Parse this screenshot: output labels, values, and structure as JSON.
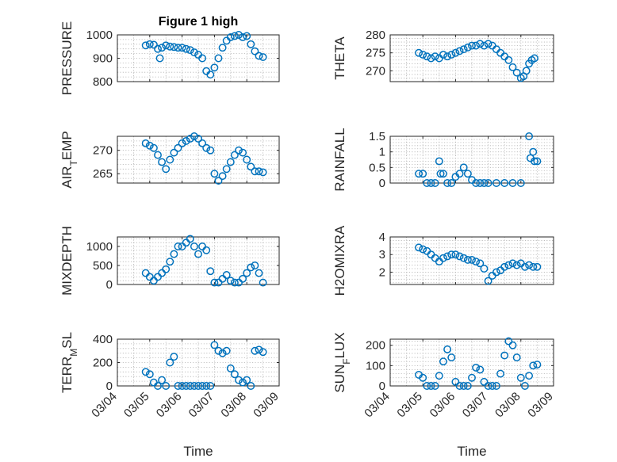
{
  "chart_data": [
    {
      "type": "scatter",
      "title": "Figure 1 high",
      "ylabel": "PRESSURE",
      "xlabel": "",
      "xlim": [
        "03/04",
        "03/09"
      ],
      "ylim": [
        800,
        1000
      ],
      "yticks": [
        800,
        900,
        1000
      ],
      "grid": true,
      "x": [
        "03/04 21:00",
        "03/05 00:00",
        "03/05 03:00",
        "03/05 06:00",
        "03/05 07:30",
        "03/05 09:00",
        "03/05 12:00",
        "03/05 15:00",
        "03/05 18:00",
        "03/05 21:00",
        "03/06 00:00",
        "03/06 03:00",
        "03/06 06:00",
        "03/06 09:00",
        "03/06 12:00",
        "03/06 15:00",
        "03/06 18:00",
        "03/06 21:00",
        "03/07 00:00",
        "03/07 03:00",
        "03/07 06:00",
        "03/07 09:00",
        "03/07 12:00",
        "03/07 15:00",
        "03/07 18:00",
        "03/07 21:00",
        "03/08 00:00",
        "03/08 03:00",
        "03/08 06:00",
        "03/08 09:00",
        "03/08 12:00"
      ],
      "values": [
        955,
        960,
        958,
        940,
        900,
        945,
        955,
        950,
        948,
        945,
        945,
        940,
        935,
        925,
        915,
        900,
        845,
        830,
        860,
        900,
        945,
        975,
        990,
        995,
        1000,
        990,
        995,
        960,
        930,
        910,
        905
      ],
      "color": "#0072BD"
    },
    {
      "type": "scatter",
      "title": "",
      "ylabel": "THETA",
      "xlabel": "",
      "xlim": [
        "03/04",
        "03/09"
      ],
      "ylim": [
        267,
        280
      ],
      "yticks": [
        270,
        275,
        280
      ],
      "grid": true,
      "x": [
        "03/04 21:00",
        "03/05 00:00",
        "03/05 03:00",
        "03/05 06:00",
        "03/05 09:00",
        "03/05 12:00",
        "03/05 15:00",
        "03/05 18:00",
        "03/05 21:00",
        "03/06 00:00",
        "03/06 03:00",
        "03/06 06:00",
        "03/06 09:00",
        "03/06 12:00",
        "03/06 15:00",
        "03/06 18:00",
        "03/06 21:00",
        "03/07 00:00",
        "03/07 03:00",
        "03/07 06:00",
        "03/07 09:00",
        "03/07 12:00",
        "03/07 15:00",
        "03/07 18:00",
        "03/07 21:00",
        "03/08 00:00",
        "03/08 02:00",
        "03/08 04:00",
        "03/08 06:00",
        "03/08 08:00",
        "03/08 10:00"
      ],
      "values": [
        275,
        274.5,
        274,
        273.5,
        274,
        273.5,
        274.5,
        274,
        274.5,
        275,
        275.5,
        276,
        276.5,
        277,
        277,
        277.5,
        277,
        277.5,
        277,
        276,
        275,
        274,
        273,
        271,
        269.5,
        268,
        268.5,
        270,
        272,
        273,
        273.5
      ],
      "color": "#0072BD"
    },
    {
      "type": "scatter",
      "title": "",
      "ylabel": "AIR_TEMP",
      "xlabel": "",
      "xlim": [
        "03/04",
        "03/09"
      ],
      "ylim": [
        263,
        273
      ],
      "yticks": [
        265,
        270
      ],
      "grid": true,
      "x": [
        "03/04 21:00",
        "03/05 00:00",
        "03/05 03:00",
        "03/05 06:00",
        "03/05 09:00",
        "03/05 12:00",
        "03/05 15:00",
        "03/05 18:00",
        "03/05 21:00",
        "03/06 00:00",
        "03/06 03:00",
        "03/06 06:00",
        "03/06 09:00",
        "03/06 12:00",
        "03/06 15:00",
        "03/06 18:00",
        "03/06 21:00",
        "03/07 00:00",
        "03/07 03:00",
        "03/07 06:00",
        "03/07 09:00",
        "03/07 12:00",
        "03/07 15:00",
        "03/07 18:00",
        "03/07 21:00",
        "03/08 00:00",
        "03/08 03:00",
        "03/08 06:00",
        "03/08 09:00",
        "03/08 12:00"
      ],
      "values": [
        271.5,
        271,
        270.5,
        269,
        267.5,
        266,
        268,
        269.5,
        270.5,
        271.5,
        272,
        272.5,
        273,
        272.5,
        271.5,
        270.5,
        270,
        265,
        263.5,
        264.5,
        266,
        267.5,
        269,
        270,
        269.5,
        268,
        266.5,
        265.5,
        265.5,
        265.3
      ],
      "color": "#0072BD"
    },
    {
      "type": "scatter",
      "title": "",
      "ylabel": "RAINFALL",
      "xlabel": "",
      "xlim": [
        "03/04",
        "03/09"
      ],
      "ylim": [
        0,
        1.5
      ],
      "yticks": [
        0,
        0.5,
        1,
        1.5
      ],
      "grid": true,
      "x": [
        "03/04 21:00",
        "03/05 00:00",
        "03/05 03:00",
        "03/05 06:00",
        "03/05 09:00",
        "03/05 12:00",
        "03/05 13:00",
        "03/05 15:00",
        "03/05 18:00",
        "03/05 21:00",
        "03/06 00:00",
        "03/06 03:00",
        "03/06 06:00",
        "03/06 09:00",
        "03/06 12:00",
        "03/06 15:00",
        "03/06 18:00",
        "03/06 21:00",
        "03/07 00:00",
        "03/07 06:00",
        "03/07 12:00",
        "03/07 18:00",
        "03/08 00:00",
        "03/08 06:00",
        "03/08 07:00",
        "03/08 09:00",
        "03/08 10:00",
        "03/08 12:00"
      ],
      "values": [
        0.3,
        0.3,
        0,
        0,
        0,
        0.7,
        0.3,
        0.3,
        0,
        0,
        0.2,
        0.3,
        0.5,
        0.3,
        0.1,
        0,
        0,
        0,
        0,
        0,
        0,
        0,
        0,
        1.5,
        0.8,
        1.0,
        0.7,
        0.7
      ],
      "color": "#0072BD"
    },
    {
      "type": "scatter",
      "title": "",
      "ylabel": "MIXDEPTH",
      "xlabel": "",
      "xlim": [
        "03/04",
        "03/09"
      ],
      "ylim": [
        0,
        1250
      ],
      "yticks": [
        0,
        500,
        1000
      ],
      "grid": true,
      "x": [
        "03/04 21:00",
        "03/05 00:00",
        "03/05 03:00",
        "03/05 06:00",
        "03/05 09:00",
        "03/05 12:00",
        "03/05 15:00",
        "03/05 18:00",
        "03/05 21:00",
        "03/06 00:00",
        "03/06 03:00",
        "03/06 06:00",
        "03/06 09:00",
        "03/06 12:00",
        "03/06 15:00",
        "03/06 18:00",
        "03/06 21:00",
        "03/07 00:00",
        "03/07 03:00",
        "03/07 06:00",
        "03/07 09:00",
        "03/07 12:00",
        "03/07 15:00",
        "03/07 18:00",
        "03/07 21:00",
        "03/08 00:00",
        "03/08 03:00",
        "03/08 06:00",
        "03/08 09:00",
        "03/08 12:00"
      ],
      "values": [
        300,
        200,
        100,
        200,
        300,
        400,
        600,
        800,
        1000,
        1000,
        1100,
        1200,
        1000,
        800,
        1000,
        900,
        350,
        50,
        50,
        150,
        250,
        100,
        50,
        50,
        150,
        300,
        450,
        500,
        300,
        50
      ],
      "color": "#0072BD"
    },
    {
      "type": "scatter",
      "title": "",
      "ylabel": "H2OMIXRA",
      "xlabel": "",
      "xlim": [
        "03/04",
        "03/09"
      ],
      "ylim": [
        1.3,
        4
      ],
      "yticks": [
        2,
        3,
        4
      ],
      "grid": true,
      "x": [
        "03/04 21:00",
        "03/05 00:00",
        "03/05 03:00",
        "03/05 06:00",
        "03/05 09:00",
        "03/05 12:00",
        "03/05 15:00",
        "03/05 18:00",
        "03/05 21:00",
        "03/06 00:00",
        "03/06 03:00",
        "03/06 06:00",
        "03/06 09:00",
        "03/06 12:00",
        "03/06 15:00",
        "03/06 18:00",
        "03/06 21:00",
        "03/07 00:00",
        "03/07 03:00",
        "03/07 06:00",
        "03/07 09:00",
        "03/07 12:00",
        "03/07 15:00",
        "03/07 18:00",
        "03/07 21:00",
        "03/08 00:00",
        "03/08 03:00",
        "03/08 06:00",
        "03/08 09:00",
        "03/08 12:00"
      ],
      "values": [
        3.4,
        3.3,
        3.2,
        3.0,
        2.8,
        2.6,
        2.8,
        2.9,
        3.0,
        3.0,
        2.9,
        2.8,
        2.7,
        2.7,
        2.6,
        2.5,
        2.2,
        1.5,
        1.8,
        2.0,
        2.1,
        2.3,
        2.4,
        2.5,
        2.4,
        2.5,
        2.3,
        2.4,
        2.3,
        2.3
      ],
      "color": "#0072BD"
    },
    {
      "type": "scatter",
      "title": "",
      "ylabel": "TERR_MSL",
      "xlabel": "Time",
      "xlim": [
        "03/04",
        "03/09"
      ],
      "ylim": [
        0,
        400
      ],
      "yticks": [
        0,
        200,
        400
      ],
      "grid": true,
      "xticks": [
        "03/04",
        "03/05",
        "03/06",
        "03/07",
        "03/08",
        "03/09"
      ],
      "x": [
        "03/04 21:00",
        "03/05 00:00",
        "03/05 03:00",
        "03/05 06:00",
        "03/05 09:00",
        "03/05 12:00",
        "03/05 15:00",
        "03/05 18:00",
        "03/05 21:00",
        "03/06 00:00",
        "03/06 03:00",
        "03/06 06:00",
        "03/06 09:00",
        "03/06 12:00",
        "03/06 15:00",
        "03/06 18:00",
        "03/06 21:00",
        "03/07 00:00",
        "03/07 03:00",
        "03/07 06:00",
        "03/07 09:00",
        "03/07 12:00",
        "03/07 15:00",
        "03/07 18:00",
        "03/07 21:00",
        "03/08 00:00",
        "03/08 03:00",
        "03/08 06:00",
        "03/08 09:00",
        "03/08 12:00"
      ],
      "values": [
        120,
        100,
        30,
        0,
        50,
        0,
        200,
        250,
        0,
        0,
        0,
        0,
        0,
        0,
        0,
        0,
        0,
        350,
        300,
        280,
        300,
        150,
        100,
        50,
        30,
        50,
        0,
        300,
        310,
        290
      ],
      "color": "#0072BD"
    },
    {
      "type": "scatter",
      "title": "",
      "ylabel": "SUN_FLUX",
      "xlabel": "Time",
      "xlim": [
        "03/04",
        "03/09"
      ],
      "ylim": [
        0,
        230
      ],
      "yticks": [
        0,
        100,
        200
      ],
      "grid": true,
      "xticks": [
        "03/04",
        "03/05",
        "03/06",
        "03/07",
        "03/08",
        "03/09"
      ],
      "x": [
        "03/04 21:00",
        "03/05 00:00",
        "03/05 03:00",
        "03/05 06:00",
        "03/05 09:00",
        "03/05 12:00",
        "03/05 15:00",
        "03/05 18:00",
        "03/05 21:00",
        "03/06 00:00",
        "03/06 03:00",
        "03/06 06:00",
        "03/06 09:00",
        "03/06 12:00",
        "03/06 15:00",
        "03/06 18:00",
        "03/06 21:00",
        "03/07 00:00",
        "03/07 03:00",
        "03/07 06:00",
        "03/07 09:00",
        "03/07 12:00",
        "03/07 15:00",
        "03/07 18:00",
        "03/07 21:00",
        "03/08 00:00",
        "03/08 03:00",
        "03/08 06:00",
        "03/08 09:00",
        "03/08 12:00"
      ],
      "values": [
        55,
        40,
        0,
        0,
        0,
        50,
        120,
        180,
        140,
        20,
        0,
        0,
        0,
        40,
        90,
        80,
        20,
        0,
        0,
        0,
        60,
        150,
        220,
        200,
        140,
        40,
        0,
        50,
        100,
        105
      ],
      "color": "#0072BD"
    }
  ]
}
